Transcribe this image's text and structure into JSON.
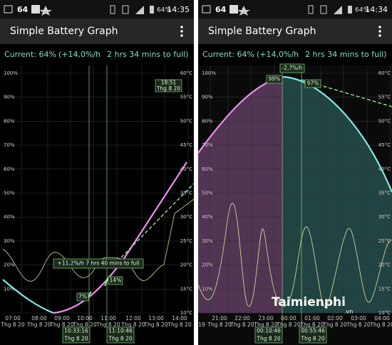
{
  "screens": [
    {
      "status": {
        "signal": "64",
        "battery": "64%",
        "time": "14:35"
      },
      "title": "Simple Battery Graph",
      "current": [
        "Current: 64%",
        "(+14,0%/h",
        "2 hrs 34 mins to full)"
      ],
      "left_ticks": [
        "100%",
        "90%",
        "80%",
        "70%",
        "60%",
        "50%",
        "40%",
        "30%",
        "20%",
        "10%"
      ],
      "right_ticks": [
        "60°C",
        "55°C",
        "50°C",
        "45°C",
        "40°C",
        "35°C",
        "30°C",
        "25°C",
        "20°C",
        "15°C",
        "10°C"
      ],
      "x_labels": [
        {
          "time": "07:00",
          "date": "Thg 8 20"
        },
        {
          "time": "08:00",
          "date": "Thg 8 20"
        },
        {
          "time": "09:00",
          "date": "Thg 8 20"
        },
        {
          "time": "10:00",
          "date": "Thg 8 20"
        },
        {
          "time": "11:00",
          "date": "Thg 8 20"
        },
        {
          "time": "12:00",
          "date": "Thg 8 20"
        },
        {
          "time": "13:00",
          "date": "Thg 8 20"
        },
        {
          "time": "14:00",
          "date": "Thg 8 20"
        }
      ],
      "annotations": [
        {
          "lines": [
            "18:51",
            "Thg 8 20"
          ]
        },
        {
          "lines": [
            "+11,2%/h  7 hrs 40 mins to full"
          ]
        },
        {
          "lines": [
            "7%"
          ]
        },
        {
          "lines": [
            "14%"
          ]
        },
        {
          "lines": [
            "10:33:16",
            "Thg 8 20"
          ]
        },
        {
          "lines": [
            "11:10:46",
            "Thg 8 20"
          ]
        }
      ]
    },
    {
      "status": {
        "signal": "64",
        "battery": "64%",
        "time": "14:34"
      },
      "title": "Simple Battery Graph",
      "current": [
        "Current: 64%",
        "(+14,0%/h",
        "2 hrs 34 mins to full)"
      ],
      "left_ticks": [
        "100%",
        "90%",
        "80%",
        "70%",
        "60%",
        "50%",
        "40%",
        "30%",
        "20%",
        "10%"
      ],
      "right_ticks": [
        "60°C",
        "55°C",
        "50°C",
        "45°C",
        "40°C",
        "35°C",
        "30°C",
        "25°C",
        "20°C",
        "15°C",
        "10°C"
      ],
      "x_labels": [
        {
          "date": "19"
        },
        {
          "time": "21:00",
          "date": "Thg 8 20"
        },
        {
          "time": "22:00",
          "date": "Thg 8 20"
        },
        {
          "time": "23:00",
          "date": "Thg 8 20"
        },
        {
          "time": "00:00",
          "date": "Thg 8 20"
        },
        {
          "time": "01:00",
          "date": "Thg 8 20"
        },
        {
          "time": "02:00",
          "date": "Thg 8 20"
        },
        {
          "time": "03:00",
          "date": "Thg 8 20"
        },
        {
          "time": "04:00",
          "date": "Thg 8 20"
        }
      ],
      "annotations": [
        {
          "lines": [
            "-2,7%/h"
          ]
        },
        {
          "lines": [
            "99%"
          ]
        },
        {
          "lines": [
            "97%"
          ]
        },
        {
          "lines": [
            "00:10:46",
            "Thg 8 20"
          ]
        },
        {
          "lines": [
            "00:55:46",
            "Thg 8 20"
          ]
        }
      ],
      "watermark": [
        "Taimienphi",
        ".vn"
      ]
    }
  ]
}
